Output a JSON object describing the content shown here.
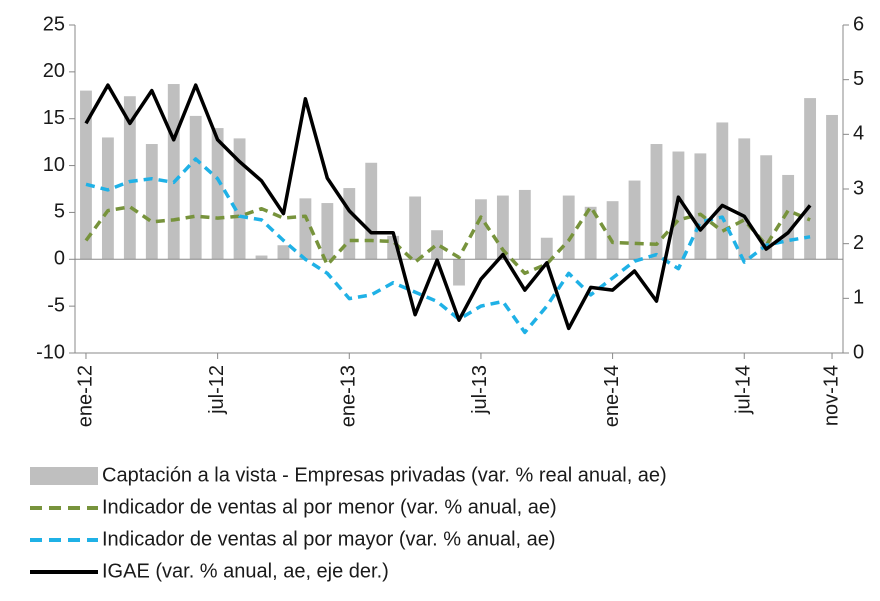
{
  "chart_data": {
    "type": "combo",
    "categories": [
      "ene-12",
      null,
      null,
      null,
      null,
      null,
      "jul-12",
      null,
      null,
      null,
      null,
      null,
      "ene-13",
      null,
      null,
      null,
      null,
      null,
      "jul-13",
      null,
      null,
      null,
      null,
      null,
      "ene-14",
      null,
      null,
      null,
      null,
      null,
      "jul-14",
      null,
      null,
      null,
      "nov-14"
    ],
    "ylim": [
      -10,
      25
    ],
    "yticks": [
      -10,
      -5,
      0,
      5,
      10,
      15,
      20,
      25
    ],
    "y2lim": [
      0,
      6
    ],
    "y2ticks": [
      0,
      1,
      2,
      3,
      4,
      5,
      6
    ],
    "grid": false,
    "series": [
      {
        "name": "Captación a la vista - Empresas privadas (var. % real anual, ae)",
        "kind": "bar",
        "color": "#bfbfbf",
        "values": [
          18,
          13,
          17.4,
          12.3,
          18.7,
          15.3,
          14,
          12.9,
          0.4,
          1.5,
          6.5,
          6,
          7.6,
          10.3,
          2.5,
          6.7,
          3.1,
          -2.8,
          6.4,
          6.8,
          7.4,
          2.3,
          6.8,
          5.6,
          6.2,
          8.4,
          12.3,
          11.5,
          11.3,
          14.6,
          12.9,
          11.1,
          9,
          17.2,
          15.4
        ]
      },
      {
        "name": "Indicador de ventas al por menor (var. % anual, ae)",
        "kind": "line",
        "dashed": true,
        "color": "#77933c",
        "values": [
          2,
          5.2,
          5.6,
          4,
          4.2,
          4.6,
          4.4,
          4.6,
          5.4,
          4.4,
          4.6,
          -0.6,
          2,
          2,
          1.9,
          -0.3,
          1.6,
          0.2,
          4.5,
          1,
          -1.5,
          -0.5,
          2,
          5.6,
          1.8,
          1.7,
          1.6,
          4.2,
          4.8,
          3,
          4.2,
          1.5,
          5.2,
          4.2,
          null
        ]
      },
      {
        "name": "Indicador de ventas al por mayor (var. % anual, ae)",
        "kind": "line",
        "dashed": true,
        "color": "#1fb1e6",
        "values": [
          8,
          7.4,
          8.3,
          8.6,
          8.2,
          10.7,
          8.6,
          4.6,
          4.2,
          2,
          0,
          -1.5,
          -4.2,
          -3.8,
          -2.5,
          -3.5,
          -4.5,
          -6.4,
          -5,
          -4.5,
          -7.8,
          -5,
          -1.5,
          -3.8,
          -2,
          -0.2,
          0.5,
          -1,
          4,
          4.5,
          -0.3,
          1.5,
          2,
          2.4,
          null
        ]
      },
      {
        "name": "IGAE (var. % anual, ae, eje der.)",
        "kind": "line",
        "dashed": false,
        "axis": "y2",
        "color": "#000000",
        "values": [
          4.2,
          4.9,
          4.2,
          4.8,
          3.9,
          4.9,
          3.9,
          3.5,
          3.15,
          2.55,
          4.65,
          3.2,
          2.6,
          2.2,
          2.2,
          0.7,
          1.7,
          0.6,
          1.35,
          1.8,
          1.15,
          1.65,
          0.45,
          1.2,
          1.15,
          1.5,
          0.95,
          2.85,
          2.25,
          2.7,
          2.5,
          1.9,
          2.2,
          2.7,
          null
        ]
      }
    ]
  }
}
